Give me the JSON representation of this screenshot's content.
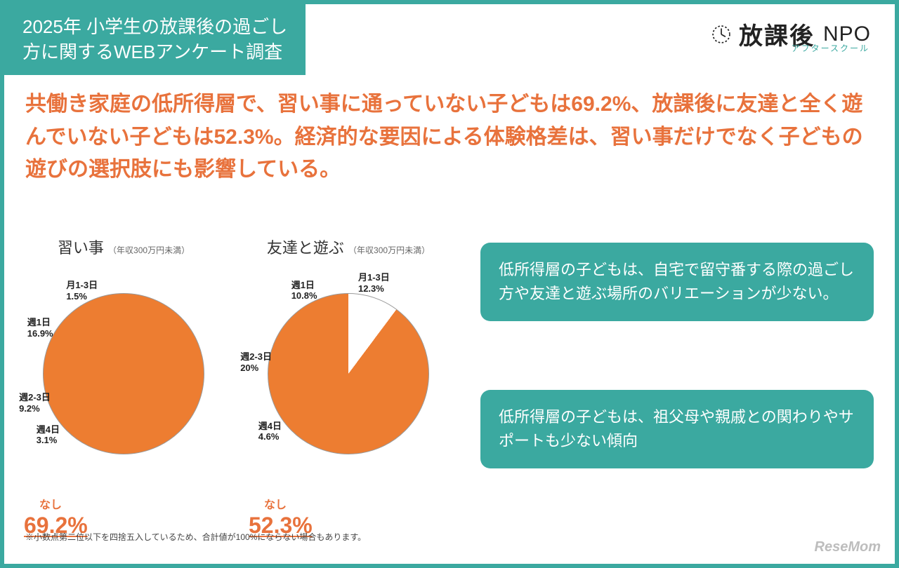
{
  "header": {
    "line1": "2025年 小学生の放課後の過ごし",
    "line2": "方に関するWEBアンケート調査"
  },
  "logo": {
    "main": "放課後",
    "npo": "NPO",
    "sub": "アフタースクール"
  },
  "headline": "共働き家庭の低所得層で、習い事に通っていない子どもは69.2%、放課後に友達と全く遊んでいない子どもは52.3%。経済的な要因による体験格差は、習い事だけでなく子どもの遊びの選択肢にも影響している。",
  "colors": {
    "accent_teal": "#3ba9a0",
    "accent_orange": "#e8723c",
    "text_dark": "#333333",
    "bg_white": "#ffffff"
  },
  "chart1": {
    "type": "pie",
    "title": "習い事",
    "subtitle": "（年収300万円未満）",
    "slices": [
      {
        "label": "週4日",
        "pct": 3.1,
        "color": "#8fbab4"
      },
      {
        "label": "週2-3日",
        "pct": 9.2,
        "color": "#5aa69e"
      },
      {
        "label": "週1日",
        "pct": 16.9,
        "color": "#bfe3de"
      },
      {
        "label": "月1-3日",
        "pct": 1.5,
        "color": "#ffffff"
      },
      {
        "label": "なし",
        "pct": 69.2,
        "color": "#ed7d31"
      }
    ],
    "highlight_label": "なし",
    "highlight_pct": "69.2%"
  },
  "chart2": {
    "type": "pie",
    "title": "友達と遊ぶ",
    "subtitle": "（年収300万円未満）",
    "slices": [
      {
        "label": "週4日",
        "pct": 4.6,
        "color": "#8fbab4"
      },
      {
        "label": "週2-3日",
        "pct": 20.0,
        "color": "#5aa69e"
      },
      {
        "label": "週1日",
        "pct": 10.8,
        "color": "#bfe3de"
      },
      {
        "label": "月1-3日",
        "pct": 12.3,
        "color": "#ffffff"
      },
      {
        "label": "なし",
        "pct": 52.3,
        "color": "#ed7d31"
      }
    ],
    "highlight_label": "なし",
    "highlight_pct": "52.3%"
  },
  "callouts": [
    "低所得層の子どもは、自宅で留守番する際の過ごし方や友達と遊ぶ場所のバリエーションが少ない。",
    "低所得層の子どもは、祖父母や親戚との関わりやサポートも少ない傾向"
  ],
  "footnote": "※小数点第二位以下を四捨五入しているため、合計値が100%にならない場合もあります。",
  "watermark": "ReseMom"
}
